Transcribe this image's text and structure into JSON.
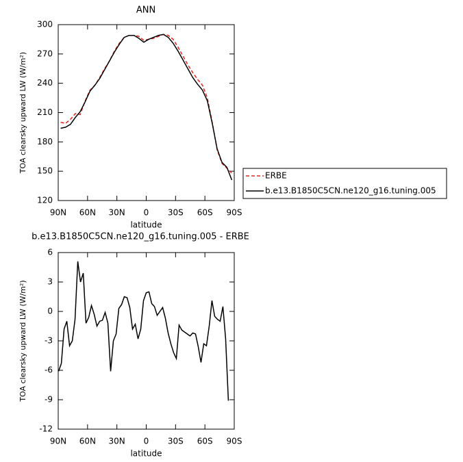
{
  "chart_data": [
    {
      "type": "line",
      "title": "ANN",
      "ylabel": "TOA clearsky upward LW (W/m²)",
      "xlabel": "latitude",
      "x": [
        87.5,
        82.5,
        77.5,
        72.5,
        67.5,
        62.5,
        57.5,
        52.5,
        47.5,
        42.5,
        37.5,
        32.5,
        27.5,
        22.5,
        17.5,
        12.5,
        7.5,
        2.5,
        -2.5,
        -7.5,
        -12.5,
        -17.5,
        -22.5,
        -27.5,
        -32.5,
        -37.5,
        -42.5,
        -47.5,
        -52.5,
        -57.5,
        -62.5,
        -67.5,
        -72.5,
        -77.5,
        -82.5,
        -87.5
      ],
      "series": [
        {
          "name": "ERBE",
          "color": "#e8211c",
          "dash": true,
          "values": [
            200,
            199,
            203,
            209,
            208,
            222,
            233,
            238,
            246,
            255,
            263,
            273,
            281,
            287,
            289,
            289,
            288,
            284,
            285,
            286,
            288,
            290,
            289,
            285,
            277,
            268,
            259,
            251,
            244,
            238,
            225,
            200,
            172,
            158,
            153,
            148
          ]
        },
        {
          "name": "b.e13.B1850C5CN.ne120_g16.tuning.005",
          "color": "#000000",
          "dash": false,
          "values": [
            194,
            195,
            198,
            205,
            211,
            221,
            232,
            238,
            245,
            254,
            263,
            272,
            280,
            287,
            289,
            289,
            286,
            282,
            285,
            287,
            289,
            290,
            287,
            281,
            273,
            264,
            255,
            246,
            239,
            233,
            222,
            199,
            173,
            159,
            154,
            141
          ]
        }
      ],
      "xlim": [
        90,
        -90
      ],
      "xticks": [
        {
          "value": 90,
          "label": "90N"
        },
        {
          "value": 60,
          "label": "60N"
        },
        {
          "value": 30,
          "label": "30N"
        },
        0,
        {
          "value": -30,
          "label": "30S"
        },
        {
          "value": -60,
          "label": "60S"
        },
        {
          "value": -90,
          "label": "90S"
        }
      ],
      "ylim": [
        120,
        300
      ],
      "yticks": [
        120,
        150,
        180,
        210,
        240,
        270,
        300
      ],
      "legend": "right"
    },
    {
      "type": "line",
      "title": "b.e13.B1850C5CN.ne120_g16.tuning.005 - ERBE",
      "ylabel": "TOA clearsky upward LW (W/m²)",
      "xlabel": "latitude",
      "x": [
        89.6,
        86.8,
        84.0,
        81.2,
        78.4,
        75.6,
        72.8,
        70.0,
        67.2,
        64.4,
        61.6,
        58.8,
        56.0,
        53.2,
        50.4,
        47.6,
        44.8,
        42.0,
        39.2,
        36.4,
        33.6,
        30.8,
        28.0,
        25.2,
        22.4,
        19.6,
        16.8,
        14.0,
        11.2,
        8.4,
        5.6,
        2.8,
        0.0,
        -2.8,
        -5.6,
        -8.4,
        -11.2,
        -14.0,
        -16.8,
        -19.6,
        -22.4,
        -25.2,
        -28.0,
        -30.8,
        -33.6,
        -36.4,
        -39.2,
        -42.0,
        -44.8,
        -47.6,
        -50.4,
        -53.2,
        -56.0,
        -58.8,
        -61.6,
        -64.4,
        -67.2,
        -70.0,
        -72.8,
        -75.6,
        -78.4,
        -81.2,
        -84.0
      ],
      "series": [
        {
          "name": "b.e13.B1850C5CN.ne120_g16.tuning.005 - ERBE",
          "color": "#000000",
          "dash": false,
          "values": [
            -6.1,
            -5.3,
            -1.8,
            -1.0,
            -3.5,
            -3.0,
            -0.8,
            5.1,
            3.0,
            3.9,
            -1.2,
            -0.6,
            0.6,
            -0.3,
            -1.5,
            -1.0,
            -0.9,
            -0.1,
            -1.2,
            -6.1,
            -3.0,
            -2.3,
            0.3,
            0.7,
            1.5,
            1.4,
            0.4,
            -1.8,
            -1.3,
            -2.8,
            -1.8,
            1.1,
            1.9,
            2.0,
            0.8,
            0.5,
            -0.4,
            0.0,
            0.4,
            -0.7,
            -2.2,
            -3.3,
            -4.2,
            -4.8,
            -1.4,
            -1.9,
            -2.1,
            -2.3,
            -2.5,
            -2.2,
            -2.3,
            -3.6,
            -5.2,
            -3.3,
            -3.5,
            -1.5,
            1.1,
            -0.5,
            -0.8,
            -1.0,
            0.5,
            -2.8,
            -9.1
          ]
        }
      ],
      "xlim": [
        90,
        -90
      ],
      "xticks": [
        {
          "value": 90,
          "label": "90N"
        },
        {
          "value": 60,
          "label": "60N"
        },
        {
          "value": 30,
          "label": "30N"
        },
        0,
        {
          "value": -30,
          "label": "30S"
        },
        {
          "value": -60,
          "label": "60S"
        },
        {
          "value": -90,
          "label": "90S"
        }
      ],
      "ylim": [
        -12,
        6
      ],
      "yticks": [
        -12,
        -9,
        -6,
        -3,
        0,
        3,
        6
      ]
    }
  ]
}
